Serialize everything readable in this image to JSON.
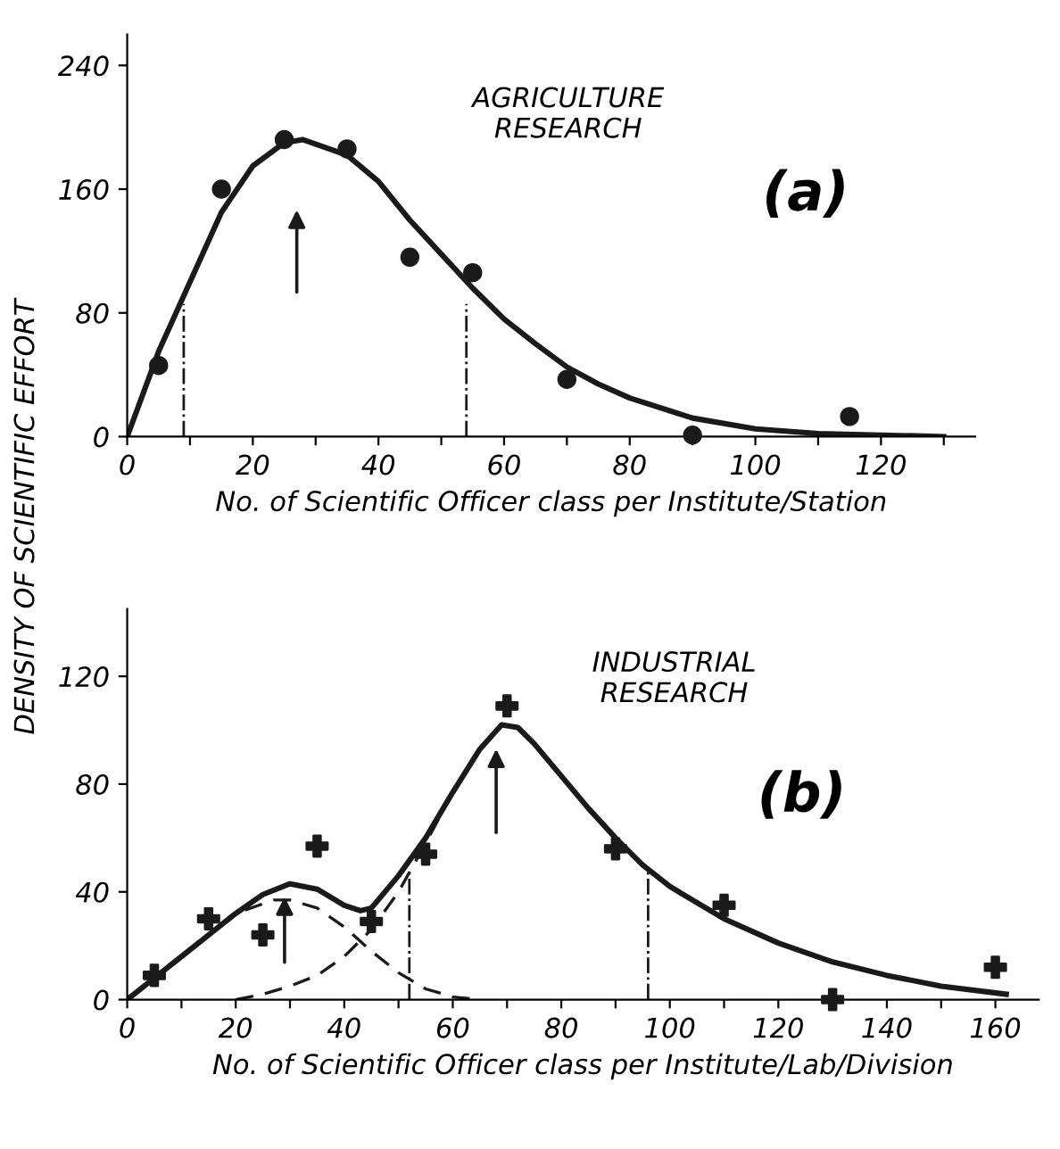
{
  "chart_data": [
    {
      "type": "scatter",
      "ylabel": "DENSITY OF SCIENTIFIC EFFORT",
      "xlabel": "No. of Scientific Officer class per Institute/Station",
      "annotations": [
        "AGRICULTURE RESEARCH",
        "(a)"
      ],
      "marker": "circle",
      "grid": false,
      "xlim": [
        0,
        135
      ],
      "ylim": [
        0,
        260
      ],
      "xticks": [
        0,
        {
          "value": 10,
          "label": null
        },
        20,
        {
          "value": 30,
          "label": null
        },
        40,
        {
          "value": 50,
          "label": null
        },
        60,
        {
          "value": 70,
          "label": null
        },
        80,
        {
          "value": 90,
          "label": null
        },
        100,
        {
          "value": 110,
          "label": null
        },
        120,
        {
          "value": 130,
          "label": null
        }
      ],
      "yticks": [
        0,
        80,
        160,
        240
      ],
      "ref_lines": [
        {
          "axis": "x",
          "value": 9,
          "label": null,
          "line_style": "dashdot"
        },
        {
          "axis": "x",
          "value": 54,
          "label": null,
          "line_style": "dashdot"
        }
      ],
      "series": [
        {
          "color": "#1a1a1a",
          "x": [
            5,
            15,
            25,
            35,
            45,
            55,
            70,
            90,
            115
          ],
          "values": [
            46,
            160,
            192,
            186,
            116,
            106,
            37,
            1,
            13
          ]
        },
        {
          "type": "line",
          "color": "#1a1a1a",
          "line_style": "solid",
          "marker": "none",
          "x": [
            0,
            5,
            10,
            15,
            20,
            25,
            28,
            35,
            40,
            45,
            50,
            55,
            60,
            65,
            70,
            75,
            80,
            90,
            100,
            110,
            120,
            130
          ],
          "values": [
            0,
            55,
            100,
            145,
            175,
            190,
            192,
            182,
            165,
            140,
            118,
            96,
            76,
            60,
            45,
            34,
            25,
            12,
            5,
            2,
            1,
            0
          ]
        }
      ]
    },
    {
      "type": "scatter",
      "xlabel": "No. of Scientific Officer class per Institute/Lab/Division",
      "annotations": [
        "INDUSTRIAL RESEARCH",
        "(b)"
      ],
      "marker": "cross",
      "grid": false,
      "xlim": [
        0,
        168
      ],
      "ylim": [
        0,
        145
      ],
      "xticks": [
        0,
        {
          "value": 10,
          "label": null
        },
        20,
        {
          "value": 30,
          "label": null
        },
        40,
        {
          "value": 50,
          "label": null
        },
        60,
        {
          "value": 70,
          "label": null
        },
        80,
        {
          "value": 90,
          "label": null
        },
        100,
        {
          "value": 110,
          "label": null
        },
        120,
        {
          "value": 130,
          "label": null
        },
        140,
        {
          "value": 150,
          "label": null
        },
        160
      ],
      "yticks": [
        0,
        40,
        80,
        120
      ],
      "ref_lines": [
        {
          "axis": "x",
          "value": 52,
          "label": null,
          "line_style": "dashdot"
        },
        {
          "axis": "x",
          "value": 96,
          "label": null,
          "line_style": "dashdot"
        }
      ],
      "series": [
        {
          "color": "#1a1a1a",
          "x": [
            5,
            15,
            25,
            35,
            45,
            55,
            70,
            90,
            110,
            130,
            160
          ],
          "values": [
            9,
            30,
            24,
            57,
            29,
            54,
            109,
            56,
            35,
            0,
            12
          ]
        },
        {
          "type": "line",
          "color": "#1a1a1a",
          "line_style": "solid",
          "marker": "none",
          "x": [
            0,
            5,
            10,
            15,
            20,
            25,
            30,
            35,
            40,
            43,
            45,
            50,
            55,
            60,
            65,
            69,
            72,
            75,
            80,
            85,
            90,
            95,
            100,
            110,
            120,
            130,
            140,
            150,
            162
          ],
          "values": [
            0,
            8,
            16,
            24,
            32,
            39,
            43,
            41,
            35,
            33,
            34,
            46,
            60,
            77,
            93,
            102,
            101,
            95,
            83,
            71,
            60,
            50,
            42,
            30,
            21,
            14,
            9,
            5,
            2
          ]
        },
        {
          "type": "line",
          "color": "#1a1a1a",
          "line_style": "dashed",
          "marker": "none",
          "x": [
            0,
            10,
            20,
            27,
            30,
            35,
            40,
            45,
            50,
            55,
            60,
            65
          ],
          "values": [
            0,
            16,
            32,
            37,
            37,
            34,
            27,
            18,
            10,
            4,
            1,
            0
          ]
        },
        {
          "type": "line",
          "color": "#1a1a1a",
          "line_style": "dashed",
          "marker": "none",
          "x": [
            20,
            25,
            30,
            35,
            40,
            45,
            50,
            55,
            60
          ],
          "values": [
            0,
            2,
            5,
            9,
            16,
            26,
            40,
            58,
            77
          ]
        }
      ]
    }
  ]
}
